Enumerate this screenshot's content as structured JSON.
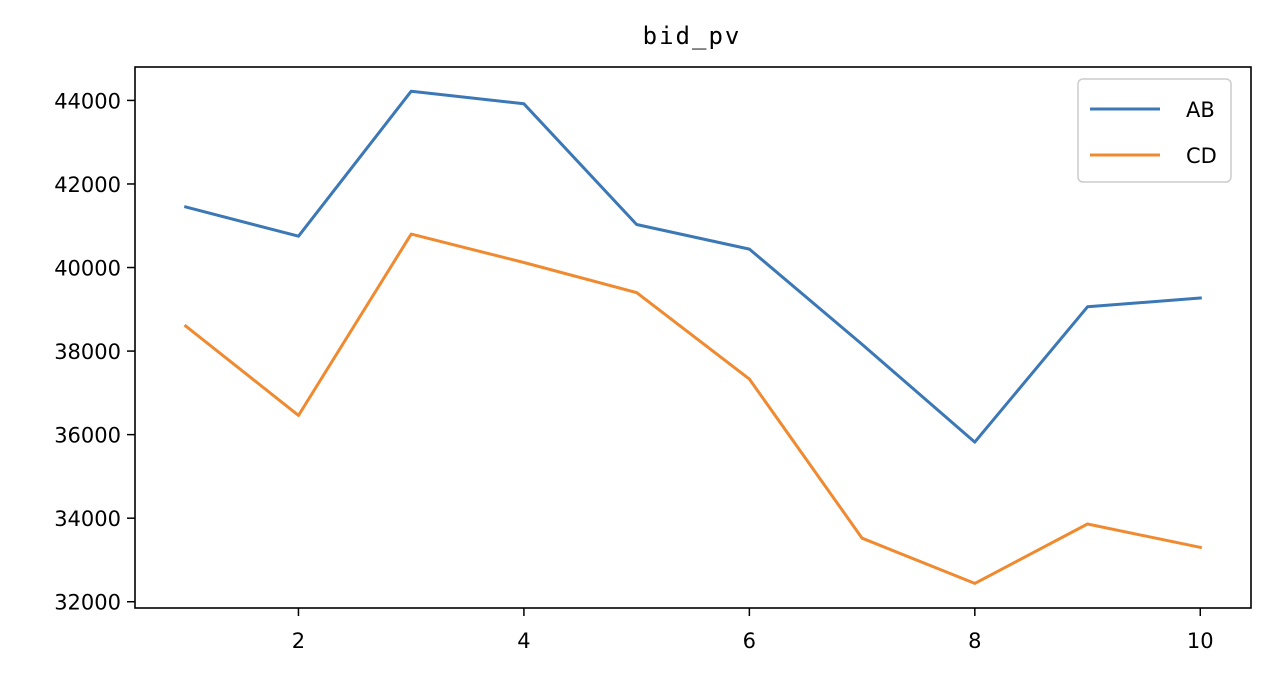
{
  "chart_data": {
    "type": "line",
    "title": "bid_pv",
    "xlabel": "",
    "ylabel": "",
    "x": [
      1,
      2,
      3,
      4,
      5,
      6,
      7,
      8,
      9,
      10
    ],
    "x_ticks": [
      2,
      4,
      6,
      8,
      10
    ],
    "y_ticks": [
      32000,
      34000,
      36000,
      38000,
      40000,
      42000,
      44000
    ],
    "xlim": [
      0.55,
      10.45
    ],
    "ylim": [
      31850,
      44800
    ],
    "grid": false,
    "legend_position": "top-right",
    "series": [
      {
        "name": "AB",
        "color": "#3b78b5",
        "values": [
          41450,
          40750,
          44220,
          43920,
          41030,
          40440,
          38160,
          35820,
          39060,
          39270
        ]
      },
      {
        "name": "CD",
        "color": "#f08a30",
        "values": [
          38600,
          36460,
          40800,
          40120,
          39400,
          37330,
          33520,
          32440,
          33860,
          33300
        ]
      }
    ]
  }
}
